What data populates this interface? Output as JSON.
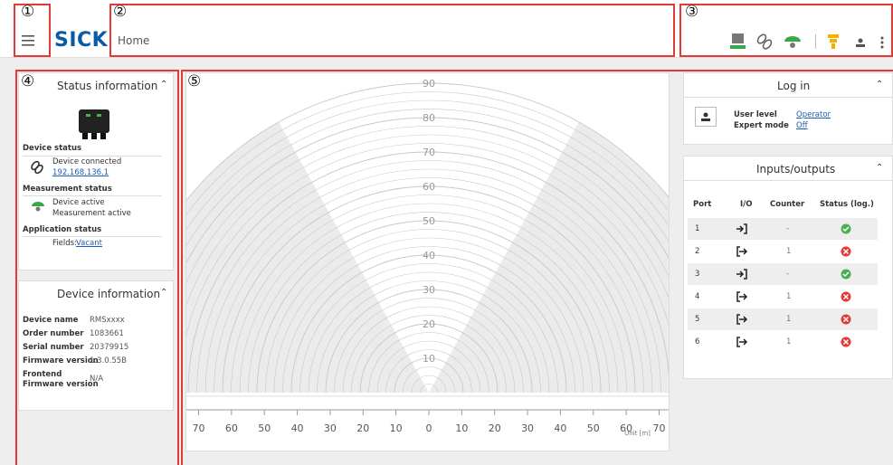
{
  "annotations": [
    "①",
    "②",
    "③",
    "④",
    "⑤"
  ],
  "header": {
    "logo": "SICK",
    "breadcrumb": "Home"
  },
  "status_card": {
    "title": "Status information",
    "device_status": {
      "heading": "Device status",
      "text": "Device connected",
      "address": "192.168.136.1"
    },
    "measurement_status": {
      "heading": "Measurement status",
      "line1": "Device active",
      "line2": "Measurement active"
    },
    "application_status": {
      "heading": "Application status",
      "fields_label": "Fields:",
      "fields_value": "Vacant"
    }
  },
  "device_card": {
    "title": "Device information",
    "rows": [
      [
        "Device name",
        "RMSxxxx"
      ],
      [
        "Order number",
        "1083661"
      ],
      [
        "Serial number",
        "20379915"
      ],
      [
        "Firmware version",
        "1.3.0.55B"
      ],
      [
        "Frontend\nFirmware version",
        "N/A"
      ]
    ]
  },
  "radar": {
    "ylim": [
      0,
      90
    ],
    "yticks": [
      10,
      20,
      30,
      40,
      50,
      60,
      70,
      80,
      90
    ],
    "xlim": [
      -70,
      70
    ],
    "xticks": [
      {
        "value": -70,
        "label": "70"
      },
      {
        "value": -60,
        "label": "60"
      },
      {
        "value": -50,
        "label": "50"
      },
      {
        "value": -40,
        "label": "40"
      },
      {
        "value": -30,
        "label": "30"
      },
      {
        "value": -20,
        "label": "20"
      },
      {
        "value": -10,
        "label": "10"
      },
      0,
      10,
      20,
      30,
      40,
      50,
      60,
      70
    ],
    "unit": "Unit [m]"
  },
  "login_card": {
    "title": "Log in",
    "user_level_label": "User level",
    "user_level": "Operator",
    "expert_mode_label": "Expert mode",
    "expert_mode": "Off"
  },
  "io_card": {
    "title": "Inputs/outputs",
    "columns": [
      "Port",
      "I/O",
      "Counter",
      "Status (log.)"
    ],
    "rows": [
      {
        "port": "1",
        "io": "input",
        "counter": "-",
        "status": "ok"
      },
      {
        "port": "2",
        "io": "output",
        "counter": "1",
        "status": "error"
      },
      {
        "port": "3",
        "io": "input",
        "counter": "-",
        "status": "ok"
      },
      {
        "port": "4",
        "io": "output",
        "counter": "1",
        "status": "error"
      },
      {
        "port": "5",
        "io": "output",
        "counter": "1",
        "status": "error"
      },
      {
        "port": "6",
        "io": "output",
        "counter": "1",
        "status": "error"
      }
    ]
  }
}
